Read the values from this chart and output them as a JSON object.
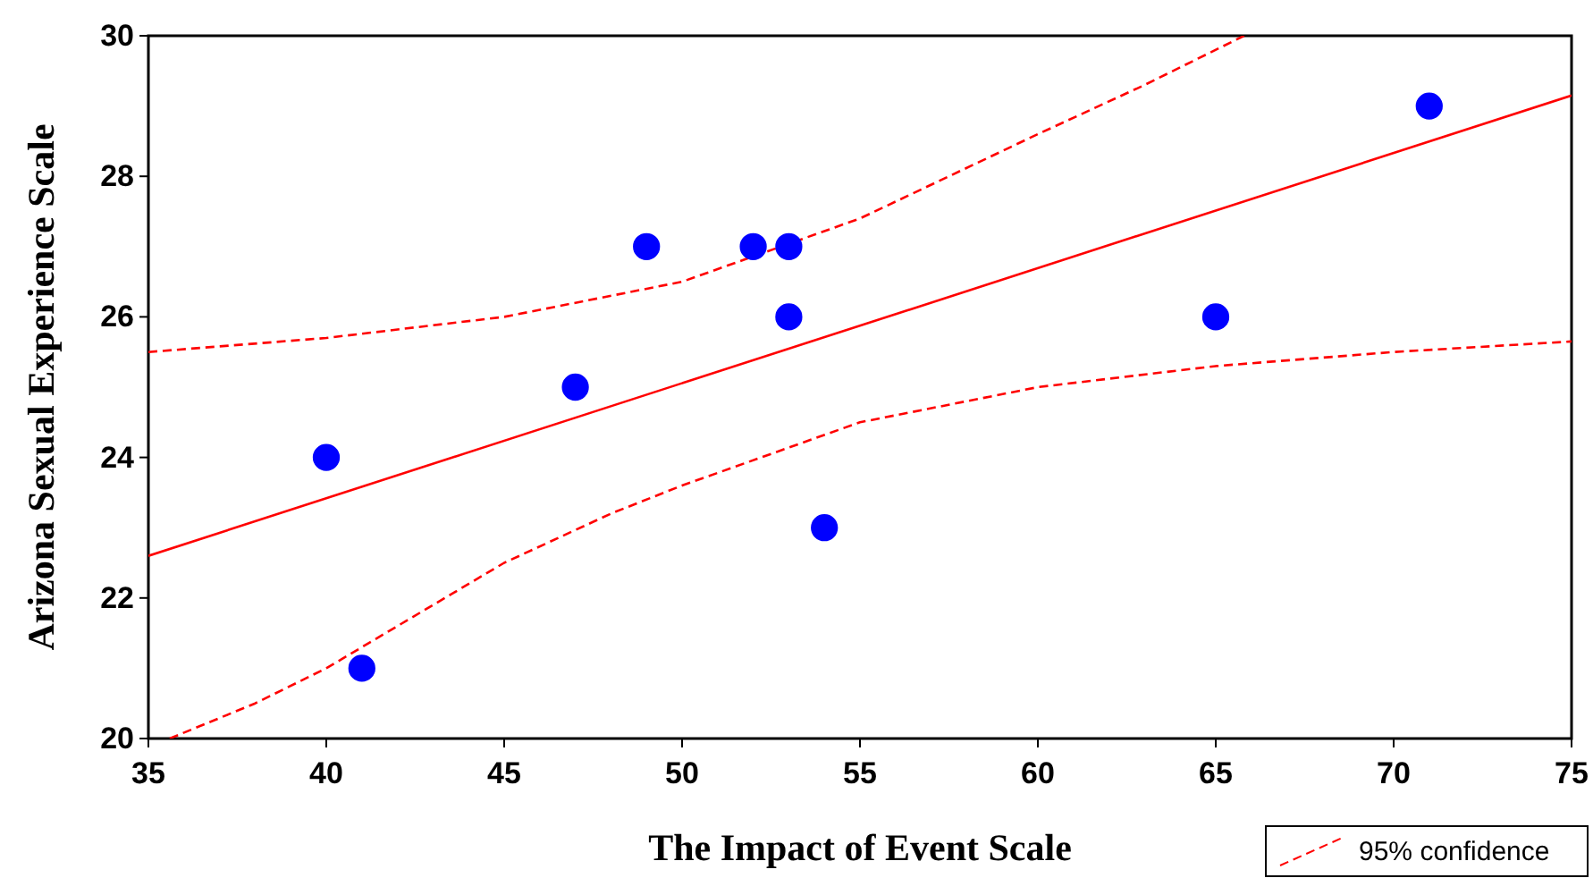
{
  "chart_data": {
    "type": "scatter",
    "xlabel": "The Impact of Event Scale",
    "ylabel": "Arizona Sexual Experience Scale",
    "xlim": [
      35,
      75
    ],
    "ylim": [
      20,
      30
    ],
    "xticks": [
      35,
      40,
      45,
      50,
      55,
      60,
      65,
      70,
      75
    ],
    "yticks": [
      20,
      22,
      24,
      26,
      28,
      30
    ],
    "grid": false,
    "legend": "bottom right",
    "series": [
      {
        "color": "#0000ff",
        "marker": "circle",
        "x": [
          40,
          41,
          47,
          49,
          52,
          53,
          53,
          54,
          65,
          71
        ],
        "values": [
          24,
          21,
          25,
          27,
          27,
          27,
          26,
          23,
          26,
          29
        ]
      },
      {
        "type": "line",
        "color": "#ff0000",
        "line_style": "solid",
        "marker": "none",
        "x": [
          35,
          75
        ],
        "values": [
          22.6,
          29.15
        ]
      },
      {
        "type": "line",
        "name": "95% confidence",
        "color": "#ff0000",
        "line_style": "dashed",
        "marker": "none",
        "x": [
          35,
          40,
          45,
          50,
          55,
          60,
          63,
          65.8
        ],
        "values": [
          25.5,
          25.7,
          26.0,
          26.5,
          27.4,
          28.6,
          29.3,
          30
        ]
      },
      {
        "type": "line",
        "color": "#ff0000",
        "line_style": "dashed",
        "marker": "none",
        "x": [
          35.6,
          38,
          40,
          42,
          45,
          48,
          50,
          55,
          60,
          65,
          70,
          75
        ],
        "values": [
          20,
          20.5,
          21,
          21.6,
          22.5,
          23.2,
          23.6,
          24.5,
          25,
          25.3,
          25.5,
          25.65
        ]
      }
    ]
  }
}
